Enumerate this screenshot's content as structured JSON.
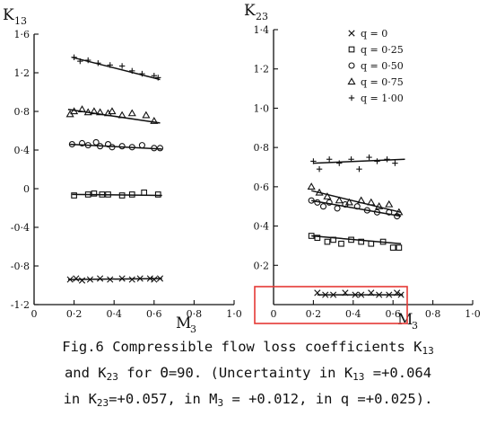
{
  "chart_data": [
    {
      "type": "scatter",
      "ylabel": "K",
      "ylabel_sub": "13",
      "xlabel": "M",
      "xlabel_sub": "3",
      "xlim": [
        0,
        1.0
      ],
      "ylim": [
        -1.2,
        1.6
      ],
      "xticks": [
        0,
        0.2,
        0.4,
        0.6,
        0.8,
        1.0
      ],
      "xtick_labels": [
        "0",
        "0·2",
        "0·4",
        "0·6",
        "0·8",
        "1·0"
      ],
      "yticks": [
        1.6,
        1.2,
        0.8,
        0.4,
        0,
        -0.4,
        -0.8,
        -1.2
      ],
      "ytick_labels": [
        "1·6",
        "1·2",
        "0·8",
        "0·4",
        "0",
        "-0·4",
        "-0·8",
        "-1·2"
      ],
      "series": [
        {
          "name": "q = 0",
          "marker": "x",
          "x": [
            0.18,
            0.21,
            0.24,
            0.28,
            0.33,
            0.38,
            0.44,
            0.49,
            0.53,
            0.58,
            0.6,
            0.63
          ],
          "y": [
            -0.94,
            -0.93,
            -0.95,
            -0.94,
            -0.93,
            -0.94,
            -0.93,
            -0.94,
            -0.93,
            -0.93,
            -0.94,
            -0.93
          ],
          "fit": [
            [
              0.17,
              -0.94
            ],
            [
              0.64,
              -0.93
            ]
          ]
        },
        {
          "name": "q = 0·25",
          "marker": "square",
          "x": [
            0.2,
            0.27,
            0.3,
            0.34,
            0.37,
            0.44,
            0.49,
            0.55,
            0.62
          ],
          "y": [
            -0.07,
            -0.06,
            -0.05,
            -0.06,
            -0.06,
            -0.07,
            -0.06,
            -0.04,
            -0.06
          ],
          "fit": [
            [
              0.19,
              -0.06
            ],
            [
              0.64,
              -0.07
            ]
          ]
        },
        {
          "name": "q = 0·50",
          "marker": "circle",
          "x": [
            0.19,
            0.24,
            0.27,
            0.31,
            0.33,
            0.37,
            0.39,
            0.44,
            0.49,
            0.54,
            0.6,
            0.63
          ],
          "y": [
            0.46,
            0.47,
            0.45,
            0.48,
            0.44,
            0.46,
            0.43,
            0.44,
            0.43,
            0.45,
            0.42,
            0.42
          ],
          "fit": [
            [
              0.18,
              0.46
            ],
            [
              0.64,
              0.41
            ]
          ]
        },
        {
          "name": "q = 0·75",
          "marker": "triangle",
          "x": [
            0.18,
            0.2,
            0.24,
            0.27,
            0.3,
            0.33,
            0.37,
            0.39,
            0.44,
            0.49,
            0.56,
            0.6
          ],
          "y": [
            0.77,
            0.8,
            0.82,
            0.79,
            0.8,
            0.79,
            0.78,
            0.8,
            0.76,
            0.78,
            0.76,
            0.7
          ],
          "fit": [
            [
              0.17,
              0.82
            ],
            [
              0.63,
              0.68
            ]
          ]
        },
        {
          "name": "q = 1·00",
          "marker": "plus",
          "x": [
            0.2,
            0.23,
            0.27,
            0.32,
            0.38,
            0.44,
            0.49,
            0.54,
            0.6,
            0.62
          ],
          "y": [
            1.36,
            1.32,
            1.33,
            1.3,
            1.28,
            1.27,
            1.22,
            1.19,
            1.17,
            1.15
          ],
          "fit": [
            [
              0.19,
              1.36
            ],
            [
              0.63,
              1.13
            ]
          ]
        }
      ]
    },
    {
      "type": "scatter",
      "ylabel": "K",
      "ylabel_sub": "23",
      "xlabel": "M",
      "xlabel_sub": "3",
      "xlim": [
        0,
        1.0
      ],
      "ylim": [
        0,
        1.4
      ],
      "xticks": [
        0,
        0.2,
        0.4,
        0.6,
        0.8,
        1.0
      ],
      "xtick_labels": [
        "0",
        "0·2",
        "0·4",
        "0·6",
        "0·8",
        "1·0"
      ],
      "yticks": [
        1.4,
        1.2,
        1.0,
        0.8,
        0.6,
        0.4,
        0.2
      ],
      "ytick_labels": [
        "1·4",
        "1·2",
        "1·0",
        "0·8",
        "0·6",
        "0·4",
        "0·2"
      ],
      "legend": "top-right",
      "series": [
        {
          "name": "q = 0",
          "marker": "x",
          "x": [
            0.22,
            0.26,
            0.3,
            0.36,
            0.41,
            0.44,
            0.49,
            0.53,
            0.58,
            0.62,
            0.64
          ],
          "y": [
            0.06,
            0.05,
            0.05,
            0.06,
            0.05,
            0.05,
            0.06,
            0.05,
            0.05,
            0.06,
            0.05
          ],
          "fit": [
            [
              0.22,
              0.05
            ],
            [
              0.65,
              0.05
            ]
          ]
        },
        {
          "name": "q = 0·25",
          "marker": "square",
          "x": [
            0.19,
            0.22,
            0.27,
            0.3,
            0.34,
            0.39,
            0.44,
            0.49,
            0.55,
            0.6,
            0.63
          ],
          "y": [
            0.35,
            0.34,
            0.32,
            0.33,
            0.31,
            0.33,
            0.32,
            0.31,
            0.32,
            0.29,
            0.29
          ],
          "fit": [
            [
              0.19,
              0.35
            ],
            [
              0.64,
              0.31
            ]
          ]
        },
        {
          "name": "q = 0·50",
          "marker": "circle",
          "x": [
            0.19,
            0.22,
            0.25,
            0.28,
            0.32,
            0.36,
            0.42,
            0.47,
            0.52,
            0.58,
            0.62
          ],
          "y": [
            0.53,
            0.52,
            0.5,
            0.52,
            0.49,
            0.51,
            0.5,
            0.48,
            0.47,
            0.47,
            0.45
          ],
          "fit": [
            [
              0.19,
              0.53
            ],
            [
              0.64,
              0.45
            ]
          ]
        },
        {
          "name": "q = 0·75",
          "marker": "triangle",
          "x": [
            0.19,
            0.23,
            0.27,
            0.33,
            0.38,
            0.44,
            0.49,
            0.53,
            0.58,
            0.63
          ],
          "y": [
            0.6,
            0.57,
            0.55,
            0.53,
            0.52,
            0.53,
            0.52,
            0.5,
            0.51,
            0.47
          ],
          "fit": [
            [
              0.19,
              0.58
            ],
            [
              0.64,
              0.47
            ]
          ]
        },
        {
          "name": "q = 1·00",
          "marker": "plus",
          "x": [
            0.2,
            0.23,
            0.28,
            0.33,
            0.39,
            0.43,
            0.48,
            0.52,
            0.57,
            0.61
          ],
          "y": [
            0.73,
            0.69,
            0.74,
            0.72,
            0.74,
            0.69,
            0.75,
            0.73,
            0.74,
            0.72
          ],
          "fit": [
            [
              0.2,
              0.72
            ],
            [
              0.66,
              0.74
            ]
          ]
        }
      ]
    }
  ],
  "caption": {
    "line1_a": "Fig.6  Compressible flow loss coefficients K",
    "line1_sub": "13",
    "line2_a": "and K",
    "line2_sub1": "23",
    "line2_b": " for Θ=90. (Uncertainty in K",
    "line2_sub2": "13",
    "line2_c": " =+0.064",
    "line3_a": "in K",
    "line3_sub": "23",
    "line3_b": "=+0.057, in M",
    "line3_sub2": "3",
    "line3_c": " = +0.012, in q =+0.025)."
  },
  "colors": {
    "ink": "#111111",
    "highlight": "#e53935"
  }
}
